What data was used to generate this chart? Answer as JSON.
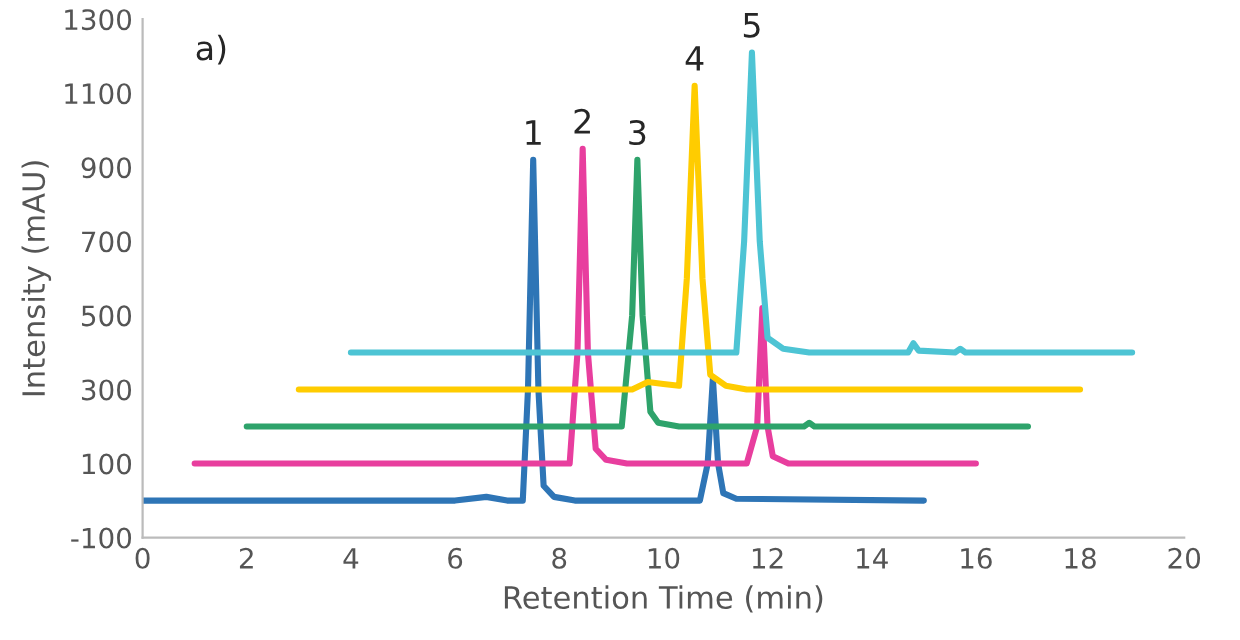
{
  "chart_data": {
    "type": "line",
    "xlabel": "Retention Time (min)",
    "ylabel": "Intensity (mAU)",
    "xlim": [
      0,
      20
    ],
    "xticks": [
      0,
      2,
      4,
      6,
      8,
      10,
      12,
      14,
      16,
      18,
      20
    ],
    "ylim": [
      -100,
      1300
    ],
    "yticks": [
      -100,
      100,
      300,
      500,
      700,
      900,
      1100,
      1300
    ],
    "grid": false,
    "legend": false,
    "marker": "none",
    "line_style": "solid",
    "series": [
      {
        "color": "#2e75b6",
        "x": [
          0,
          6,
          6.6,
          7,
          7.3,
          7.4,
          7.5,
          7.6,
          7.7,
          7.9,
          8.3,
          10.7,
          10.85,
          10.95,
          11.05,
          11.15,
          11.4,
          15
        ],
        "values": [
          0,
          0,
          10,
          0,
          0,
          300,
          920,
          300,
          40,
          10,
          0,
          0,
          100,
          330,
          100,
          20,
          5,
          0
        ]
      },
      {
        "color": "#e83e9e",
        "x": [
          1,
          8.2,
          8.35,
          8.45,
          8.55,
          8.7,
          8.9,
          9.3,
          11.6,
          11.8,
          11.9,
          12.0,
          12.1,
          12.4,
          16
        ],
        "values": [
          100,
          100,
          400,
          950,
          400,
          140,
          110,
          100,
          100,
          200,
          520,
          200,
          120,
          100,
          100
        ]
      },
      {
        "color": "#2ea36b",
        "x": [
          2,
          9.2,
          9.4,
          9.5,
          9.6,
          9.75,
          9.9,
          10.3,
          12.7,
          12.8,
          12.9,
          17
        ],
        "values": [
          200,
          200,
          500,
          920,
          500,
          240,
          210,
          200,
          200,
          210,
          200,
          200
        ]
      },
      {
        "color": "#ffcc00",
        "x": [
          3,
          9.4,
          9.7,
          10.0,
          10.3,
          10.45,
          10.6,
          10.75,
          10.9,
          11.2,
          11.6,
          18
        ],
        "values": [
          300,
          300,
          320,
          315,
          310,
          600,
          1120,
          600,
          340,
          310,
          300,
          300
        ]
      },
      {
        "color": "#4dc4d4",
        "x": [
          4,
          11.4,
          11.55,
          11.7,
          11.85,
          12.0,
          12.3,
          12.8,
          14.7,
          14.8,
          14.9,
          15.6,
          15.7,
          15.8,
          19
        ],
        "values": [
          400,
          400,
          700,
          1210,
          700,
          440,
          410,
          400,
          400,
          425,
          405,
          400,
          410,
          400,
          400
        ]
      }
    ],
    "annotations": [
      "a)",
      {
        "text": "1",
        "x": 7.5,
        "y": 920
      },
      {
        "text": "2",
        "x": 8.45,
        "y": 950
      },
      {
        "text": "3",
        "x": 9.5,
        "y": 920
      },
      {
        "text": "4",
        "x": 10.6,
        "y": 1120
      },
      {
        "text": "5",
        "x": 11.7,
        "y": 1210
      }
    ]
  }
}
